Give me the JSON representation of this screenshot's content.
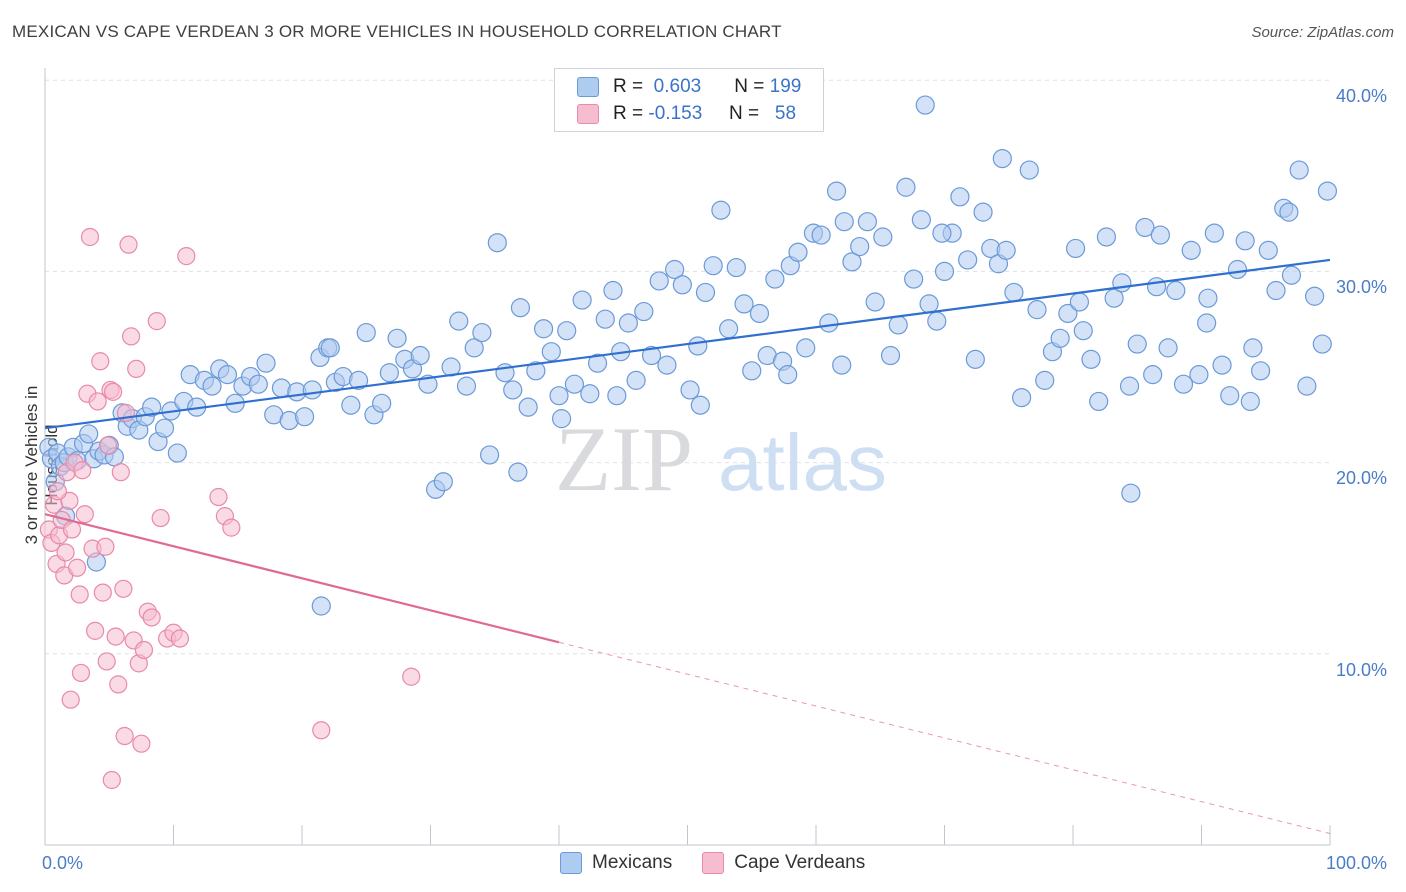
{
  "title": "MEXICAN VS CAPE VERDEAN 3 OR MORE VEHICLES IN HOUSEHOLD CORRELATION CHART",
  "source": "Source: ZipAtlas.com",
  "watermark": {
    "zip": "ZIP",
    "atlas": "atlas"
  },
  "legend": {
    "r_label": "R =",
    "n_label": "N =",
    "mexicans": {
      "r": "0.603",
      "n": "199"
    },
    "cape_verdeans": {
      "r": "-0.153",
      "n": "58"
    }
  },
  "bottom_legend": {
    "mexicans": "Mexicans",
    "cape_verdeans": "Cape Verdeans"
  },
  "colors": {
    "blue_fill": "#aecbf0",
    "blue_stroke": "#6b9ad8",
    "blue_line": "#2e6fcf",
    "pink_fill": "#f6bcd0",
    "pink_stroke": "#e88aa9",
    "pink_line": "#e06a94",
    "axis_text": "#4a7cc7",
    "grid": "#dde1e6"
  },
  "chart_data": {
    "type": "scatter",
    "xlabel": "",
    "ylabel": "3 or more Vehicles in Household",
    "xlim": [
      0,
      100
    ],
    "ylim": [
      0,
      40
    ],
    "x_ticks": [
      "0.0%",
      "100.0%"
    ],
    "y_ticks": [
      "10.0%",
      "20.0%",
      "30.0%",
      "40.0%"
    ],
    "grid": true,
    "legend_position": "top-center",
    "series": [
      {
        "name": "Mexicans",
        "trend": {
          "x": [
            0,
            100
          ],
          "y": [
            21.8,
            30.6
          ]
        },
        "points": [
          [
            0.3,
            20.8
          ],
          [
            0.5,
            20.2
          ],
          [
            0.8,
            19.0
          ],
          [
            1.0,
            20.5
          ],
          [
            1.2,
            19.8
          ],
          [
            1.5,
            20.0
          ],
          [
            1.8,
            20.3
          ],
          [
            2.2,
            20.8
          ],
          [
            2.5,
            20.1
          ],
          [
            3.0,
            21.0
          ],
          [
            3.4,
            21.5
          ],
          [
            3.8,
            20.2
          ],
          [
            4.2,
            20.6
          ],
          [
            4.6,
            20.4
          ],
          [
            5.0,
            20.9
          ],
          [
            5.4,
            20.3
          ],
          [
            6.0,
            22.6
          ],
          [
            6.4,
            21.9
          ],
          [
            6.8,
            22.3
          ],
          [
            7.3,
            21.7
          ],
          [
            7.8,
            22.4
          ],
          [
            8.3,
            22.9
          ],
          [
            8.8,
            21.1
          ],
          [
            9.3,
            21.8
          ],
          [
            9.8,
            22.7
          ],
          [
            10.3,
            20.5
          ],
          [
            1.6,
            17.2
          ],
          [
            4.0,
            14.8
          ],
          [
            10.8,
            23.2
          ],
          [
            11.3,
            24.6
          ],
          [
            11.8,
            22.9
          ],
          [
            12.4,
            24.3
          ],
          [
            13.0,
            24.0
          ],
          [
            13.6,
            24.9
          ],
          [
            14.2,
            24.6
          ],
          [
            14.8,
            23.1
          ],
          [
            15.4,
            24.0
          ],
          [
            16.0,
            24.5
          ],
          [
            16.6,
            24.1
          ],
          [
            17.2,
            25.2
          ],
          [
            17.8,
            22.5
          ],
          [
            18.4,
            23.9
          ],
          [
            19.0,
            22.2
          ],
          [
            19.6,
            23.7
          ],
          [
            20.2,
            22.4
          ],
          [
            20.8,
            23.8
          ],
          [
            21.4,
            25.5
          ],
          [
            22.0,
            26.0
          ],
          [
            22.6,
            24.2
          ],
          [
            23.2,
            24.5
          ],
          [
            23.8,
            23.0
          ],
          [
            24.4,
            24.3
          ],
          [
            25.0,
            26.8
          ],
          [
            25.6,
            22.5
          ],
          [
            26.2,
            23.1
          ],
          [
            26.8,
            24.7
          ],
          [
            27.4,
            26.5
          ],
          [
            28.0,
            25.4
          ],
          [
            28.6,
            24.9
          ],
          [
            29.2,
            25.6
          ],
          [
            29.8,
            24.1
          ],
          [
            30.4,
            18.6
          ],
          [
            31.0,
            19.0
          ],
          [
            31.6,
            25.0
          ],
          [
            32.2,
            27.4
          ],
          [
            32.8,
            24.0
          ],
          [
            33.4,
            26.0
          ],
          [
            34.0,
            26.8
          ],
          [
            34.6,
            20.4
          ],
          [
            35.2,
            31.5
          ],
          [
            35.8,
            24.7
          ],
          [
            36.4,
            23.8
          ],
          [
            37.0,
            28.1
          ],
          [
            37.6,
            22.9
          ],
          [
            38.2,
            24.8
          ],
          [
            38.8,
            27.0
          ],
          [
            39.4,
            25.8
          ],
          [
            40.0,
            23.5
          ],
          [
            40.6,
            26.9
          ],
          [
            41.2,
            24.1
          ],
          [
            41.8,
            28.5
          ],
          [
            42.4,
            23.6
          ],
          [
            43.0,
            25.2
          ],
          [
            43.6,
            27.5
          ],
          [
            44.2,
            29.0
          ],
          [
            44.8,
            25.8
          ],
          [
            45.4,
            27.3
          ],
          [
            46.0,
            24.3
          ],
          [
            46.6,
            27.9
          ],
          [
            47.2,
            25.6
          ],
          [
            47.8,
            29.5
          ],
          [
            48.4,
            25.1
          ],
          [
            49.0,
            30.1
          ],
          [
            49.6,
            29.3
          ],
          [
            50.2,
            23.8
          ],
          [
            50.8,
            26.1
          ],
          [
            51.4,
            28.9
          ],
          [
            52.0,
            30.3
          ],
          [
            52.6,
            33.2
          ],
          [
            53.2,
            27.0
          ],
          [
            53.8,
            30.2
          ],
          [
            54.4,
            28.3
          ],
          [
            55.0,
            24.8
          ],
          [
            55.6,
            27.8
          ],
          [
            56.2,
            25.6
          ],
          [
            56.8,
            29.6
          ],
          [
            57.4,
            25.3
          ],
          [
            58.0,
            30.3
          ],
          [
            58.6,
            31.0
          ],
          [
            59.2,
            26.0
          ],
          [
            59.8,
            32.0
          ],
          [
            60.4,
            31.9
          ],
          [
            61.0,
            27.3
          ],
          [
            61.6,
            34.2
          ],
          [
            62.2,
            32.6
          ],
          [
            62.8,
            30.5
          ],
          [
            63.4,
            31.3
          ],
          [
            64.0,
            32.6
          ],
          [
            64.6,
            28.4
          ],
          [
            65.2,
            31.8
          ],
          [
            65.8,
            25.6
          ],
          [
            66.4,
            27.2
          ],
          [
            67.0,
            34.4
          ],
          [
            67.6,
            29.6
          ],
          [
            68.2,
            32.7
          ],
          [
            68.8,
            28.3
          ],
          [
            69.4,
            27.4
          ],
          [
            70.0,
            30.0
          ],
          [
            70.6,
            32.0
          ],
          [
            71.2,
            33.9
          ],
          [
            71.8,
            30.6
          ],
          [
            72.4,
            25.4
          ],
          [
            73.0,
            33.1
          ],
          [
            73.6,
            31.2
          ],
          [
            74.2,
            30.4
          ],
          [
            74.8,
            31.1
          ],
          [
            75.4,
            28.9
          ],
          [
            76.0,
            23.4
          ],
          [
            76.6,
            35.3
          ],
          [
            77.2,
            28.0
          ],
          [
            77.8,
            24.3
          ],
          [
            78.4,
            25.8
          ],
          [
            79.0,
            26.5
          ],
          [
            79.6,
            27.8
          ],
          [
            80.2,
            31.2
          ],
          [
            80.8,
            26.9
          ],
          [
            81.4,
            25.4
          ],
          [
            82.0,
            23.2
          ],
          [
            82.6,
            31.8
          ],
          [
            83.2,
            28.6
          ],
          [
            83.8,
            29.4
          ],
          [
            84.4,
            24.0
          ],
          [
            85.0,
            26.2
          ],
          [
            85.6,
            32.3
          ],
          [
            86.2,
            24.6
          ],
          [
            86.8,
            31.9
          ],
          [
            87.4,
            26.0
          ],
          [
            88.0,
            29.0
          ],
          [
            88.6,
            24.1
          ],
          [
            89.2,
            31.1
          ],
          [
            89.8,
            24.6
          ],
          [
            90.4,
            27.3
          ],
          [
            91.0,
            32.0
          ],
          [
            91.6,
            25.1
          ],
          [
            92.2,
            23.5
          ],
          [
            92.8,
            30.1
          ],
          [
            93.4,
            31.6
          ],
          [
            94.0,
            26.0
          ],
          [
            94.6,
            24.8
          ],
          [
            95.2,
            31.1
          ],
          [
            95.8,
            29.0
          ],
          [
            96.4,
            33.3
          ],
          [
            97.0,
            29.8
          ],
          [
            97.6,
            35.3
          ],
          [
            98.2,
            24.0
          ],
          [
            98.8,
            28.7
          ],
          [
            99.4,
            26.2
          ],
          [
            99.8,
            34.2
          ],
          [
            68.5,
            38.7
          ],
          [
            74.5,
            35.9
          ],
          [
            84.5,
            18.4
          ],
          [
            96.8,
            33.1
          ],
          [
            93.8,
            23.2
          ],
          [
            90.5,
            28.6
          ],
          [
            86.5,
            29.2
          ],
          [
            80.5,
            28.4
          ],
          [
            69.8,
            32.0
          ],
          [
            62.0,
            25.1
          ],
          [
            57.8,
            24.6
          ],
          [
            51.0,
            23.0
          ],
          [
            44.5,
            23.5
          ],
          [
            40.2,
            22.3
          ],
          [
            36.8,
            19.5
          ],
          [
            21.5,
            12.5
          ],
          [
            22.2,
            26.0
          ]
        ]
      },
      {
        "name": "Cape Verdeans",
        "trend": {
          "x": [
            0,
            40
          ],
          "y": [
            17.3,
            10.6
          ]
        },
        "trend_dashed": {
          "x": [
            40,
            100
          ],
          "y": [
            10.6,
            0.6
          ]
        },
        "points": [
          [
            0.3,
            16.5
          ],
          [
            0.5,
            15.8
          ],
          [
            0.7,
            17.8
          ],
          [
            0.9,
            14.7
          ],
          [
            1.1,
            16.2
          ],
          [
            1.3,
            17.0
          ],
          [
            1.5,
            14.1
          ],
          [
            1.7,
            19.5
          ],
          [
            1.9,
            18.0
          ],
          [
            2.1,
            16.5
          ],
          [
            2.3,
            20.0
          ],
          [
            2.5,
            14.5
          ],
          [
            2.7,
            13.1
          ],
          [
            2.9,
            19.6
          ],
          [
            3.1,
            17.3
          ],
          [
            3.3,
            23.6
          ],
          [
            3.5,
            31.8
          ],
          [
            3.7,
            15.5
          ],
          [
            3.9,
            11.2
          ],
          [
            4.1,
            23.2
          ],
          [
            4.3,
            25.3
          ],
          [
            4.5,
            13.2
          ],
          [
            4.7,
            15.6
          ],
          [
            4.9,
            20.9
          ],
          [
            5.1,
            23.8
          ],
          [
            5.3,
            23.7
          ],
          [
            5.5,
            10.9
          ],
          [
            5.7,
            8.4
          ],
          [
            5.9,
            19.5
          ],
          [
            6.1,
            13.4
          ],
          [
            6.3,
            22.6
          ],
          [
            6.5,
            31.4
          ],
          [
            6.7,
            26.6
          ],
          [
            6.9,
            10.7
          ],
          [
            7.1,
            24.9
          ],
          [
            7.3,
            9.5
          ],
          [
            7.5,
            5.3
          ],
          [
            7.7,
            10.2
          ],
          [
            8.0,
            12.2
          ],
          [
            8.3,
            11.9
          ],
          [
            8.7,
            27.4
          ],
          [
            9.0,
            17.1
          ],
          [
            9.5,
            10.8
          ],
          [
            10.0,
            11.1
          ],
          [
            10.5,
            10.8
          ],
          [
            11.0,
            30.8
          ],
          [
            13.5,
            18.2
          ],
          [
            14.0,
            17.2
          ],
          [
            14.5,
            16.6
          ],
          [
            21.5,
            6.0
          ],
          [
            28.5,
            8.8
          ],
          [
            1.0,
            18.5
          ],
          [
            1.6,
            15.3
          ],
          [
            2.8,
            9.0
          ],
          [
            4.8,
            9.6
          ],
          [
            6.2,
            5.7
          ],
          [
            2.0,
            7.6
          ],
          [
            5.2,
            3.4
          ]
        ]
      }
    ]
  }
}
